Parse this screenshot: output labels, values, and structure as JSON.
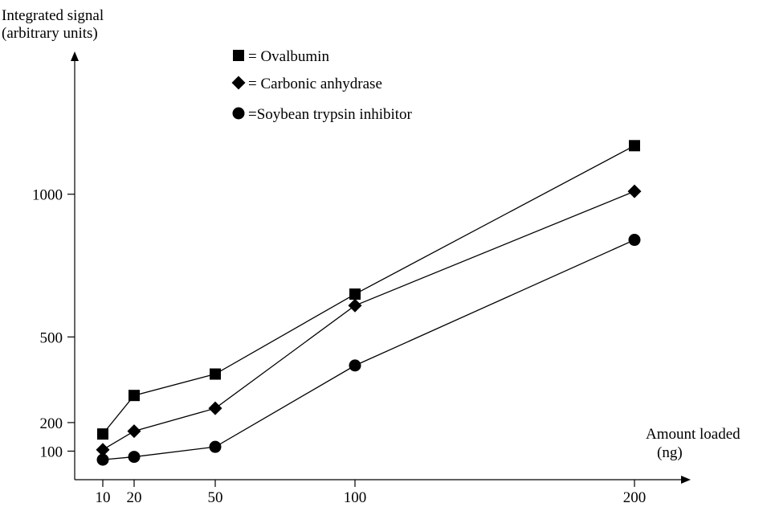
{
  "chart_data": {
    "type": "line",
    "title": "",
    "ylabel_lines": [
      "Integrated signal",
      "(arbitrary units)"
    ],
    "xlabel_lines": [
      "Amount loaded",
      "(ng)"
    ],
    "x_ticks": [
      10,
      20,
      50,
      100,
      200
    ],
    "y_ticks": [
      100,
      200,
      500,
      1000
    ],
    "xlim": [
      0,
      220
    ],
    "ylim": [
      0,
      1400
    ],
    "legend_placement": "top-left",
    "x": [
      10,
      20,
      50,
      100,
      200
    ],
    "series": [
      {
        "name": "= Ovalbumin",
        "marker": "square",
        "values": [
          160,
          295,
          370,
          650,
          1170
        ]
      },
      {
        "name": "= Carbonic anhydrase",
        "marker": "diamond",
        "values": [
          105,
          170,
          250,
          610,
          1010
        ]
      },
      {
        "name": "=Soybean trypsin inhibitor",
        "marker": "circle",
        "values": [
          70,
          80,
          115,
          400,
          840
        ]
      }
    ],
    "colors": {
      "line": "#000000",
      "marker": "#000000",
      "axis": "#000000"
    }
  }
}
